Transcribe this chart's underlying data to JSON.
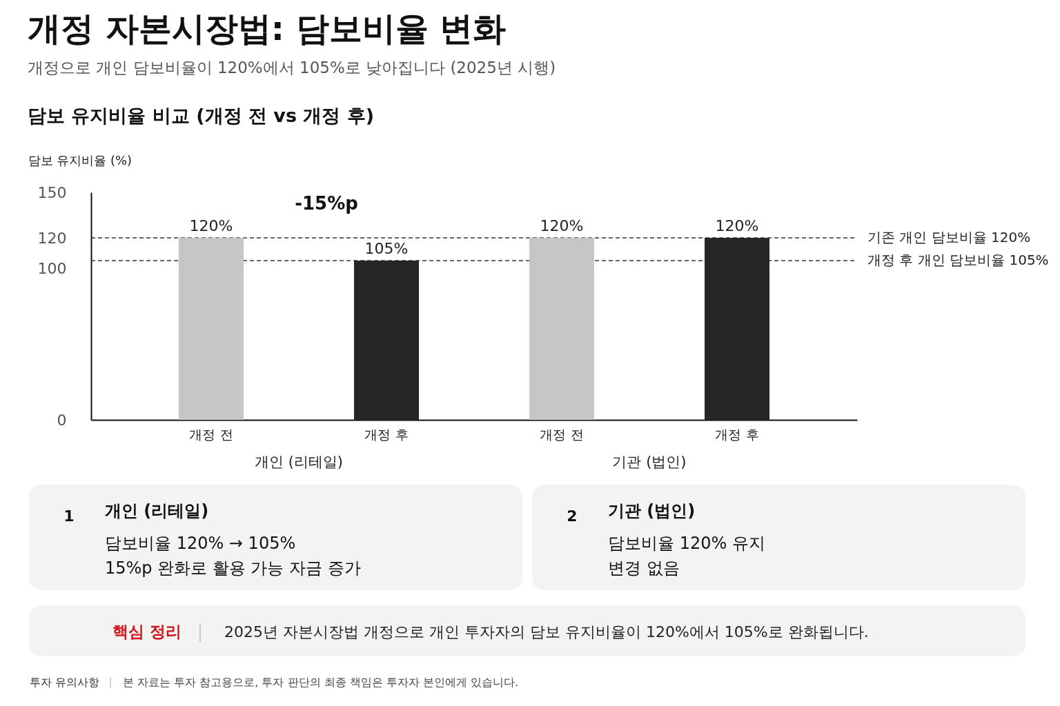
{
  "chart_data": [
    {
      "type": "bar",
      "title": "개정 자본시장법: 담보비율 변화",
      "subtitle": "개정으로 개인 담보비율이 120%에서 105%로 낮아집니다 (2025년 시행)",
      "ylabel": "담보 유지비율 (%)",
      "categories": [
        "개정 전",
        "개정 후",
        "개정 전",
        "개정 후"
      ],
      "values": [
        120,
        105,
        120,
        120
      ],
      "colors": [
        "#c6c6c6",
        "#262626",
        "#c6c6c6",
        "#262626"
      ],
      "value_labels": [
        "120%",
        "105%",
        "120%",
        "120%"
      ],
      "ylim": [
        0,
        150
      ],
      "yticks": [
        0,
        100,
        120,
        150
      ],
      "ref_lines": [
        {
          "axis": "y",
          "value": 120,
          "label": "기존 개인 담보비율 120%",
          "color": "#333333",
          "line_style": "dashed"
        },
        {
          "axis": "y",
          "value": 105,
          "label": "개정 후 개인 담보비율 105%",
          "color": "#333333",
          "line_style": "dashed"
        }
      ],
      "annotations": [
        "담보 유지비율 비교 (개정 전 vs 개정 후)",
        "-15%p",
        "개인 (리테일)",
        "기관 (법인)"
      ]
    },
    {
      "type": "other",
      "title": "개인 (리테일)",
      "annotations": [
        "1",
        "담보비율 120% → 105%",
        "15%p 완화로 활용 가능 자금 증가"
      ]
    },
    {
      "type": "other",
      "title": "기관 (법인)",
      "annotations": [
        "2",
        "담보비율 120% 유지",
        "변경 없음"
      ]
    },
    {
      "type": "other",
      "title": "핵심 정리",
      "annotations": [
        "2025년 자본시장법 개정으로 개인 투자자의 담보 유지비율이 120%에서 105%로 완화됩니다.",
        "투자 유의사항",
        "본 자료는 투자 참고용으로, 투자 판단의 최종 책임은 투자자 본인에게 있습니다."
      ]
    }
  ]
}
